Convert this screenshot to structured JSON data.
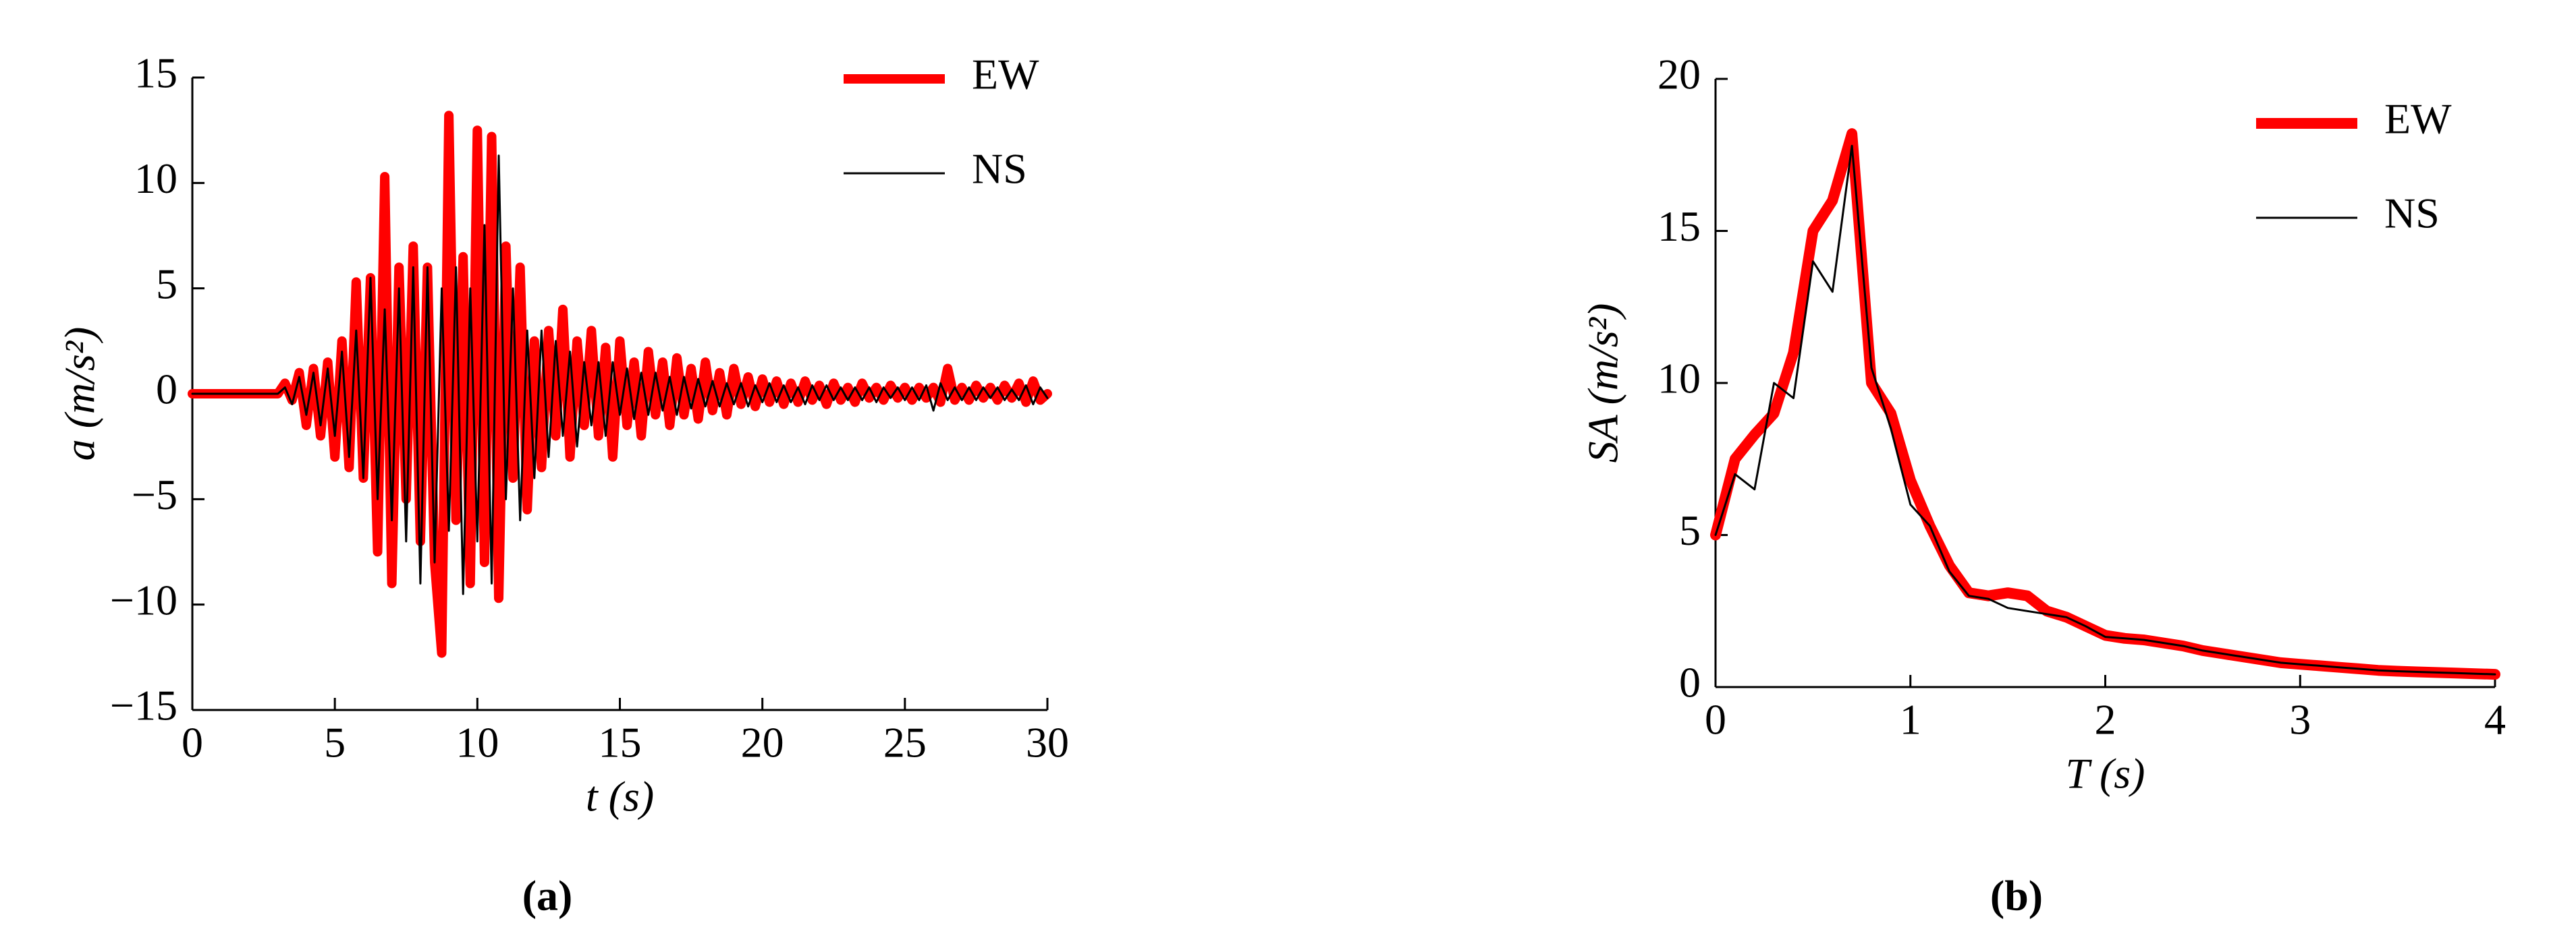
{
  "chart_data": [
    {
      "type": "line",
      "caption": "(a)",
      "xlabel": "t (s)",
      "ylabel": "a (m/s²)",
      "xlim": [
        0,
        30
      ],
      "xticks": [
        0,
        5,
        10,
        15,
        20,
        25,
        30
      ],
      "ylim": [
        -15,
        15
      ],
      "yticks": [
        {
          "value": -15,
          "label": "−15"
        },
        {
          "value": -10,
          "label": "−10"
        },
        {
          "value": -5,
          "label": "−5"
        },
        0,
        5,
        10,
        15
      ],
      "legend": "upper right",
      "x": [
        0,
        0.25,
        0.5,
        0.75,
        1,
        1.25,
        1.5,
        1.75,
        2,
        2.25,
        2.5,
        2.75,
        3,
        3.25,
        3.5,
        3.75,
        4,
        4.25,
        4.5,
        4.75,
        5,
        5.25,
        5.5,
        5.75,
        6,
        6.25,
        6.5,
        6.75,
        7,
        7.25,
        7.5,
        7.75,
        8,
        8.25,
        8.5,
        8.75,
        9,
        9.25,
        9.5,
        9.75,
        10,
        10.25,
        10.5,
        10.75,
        11,
        11.25,
        11.5,
        11.75,
        12,
        12.25,
        12.5,
        12.75,
        13,
        13.25,
        13.5,
        13.75,
        14,
        14.25,
        14.5,
        14.75,
        15,
        15.25,
        15.5,
        15.75,
        16,
        16.25,
        16.5,
        16.75,
        17,
        17.25,
        17.5,
        17.75,
        18,
        18.25,
        18.5,
        18.75,
        19,
        19.25,
        19.5,
        19.75,
        20,
        20.25,
        20.5,
        20.75,
        21,
        21.25,
        21.5,
        21.75,
        22,
        22.25,
        22.5,
        22.75,
        23,
        23.25,
        23.5,
        23.75,
        24,
        24.25,
        24.5,
        24.75,
        25,
        25.25,
        25.5,
        25.75,
        26,
        26.25,
        26.5,
        26.75,
        27,
        27.25,
        27.5,
        27.75,
        28,
        28.25,
        28.5,
        28.75,
        29,
        29.25,
        29.5,
        29.75,
        30
      ],
      "series": [
        {
          "name": "EW",
          "color": "#ff0000",
          "width": 14,
          "values": [
            0,
            0,
            0,
            0,
            0,
            0,
            0,
            0,
            0,
            0,
            0,
            0,
            0,
            0.5,
            -0.3,
            1.0,
            -1.5,
            1.2,
            -2,
            1.5,
            -3,
            2.5,
            -3.5,
            5.3,
            -4,
            5.5,
            -7.5,
            10.3,
            -9,
            6,
            -5,
            7,
            -7,
            6,
            -8,
            -12.3,
            13.2,
            -6,
            6.5,
            -9,
            12.5,
            -8,
            12.2,
            -9.7,
            7,
            -4,
            6,
            -5.5,
            2.5,
            -3.5,
            3,
            -2,
            4,
            -3,
            2.5,
            -1.5,
            3,
            -2,
            2.2,
            -3,
            2.5,
            -1.5,
            1.5,
            -2,
            2,
            -1,
            1.5,
            -1.5,
            1.7,
            -1,
            1.2,
            -1.2,
            1.5,
            -0.8,
            1,
            -1,
            1.2,
            -0.5,
            0.8,
            -0.6,
            0.7,
            -0.4,
            0.6,
            -0.5,
            0.5,
            -0.4,
            0.6,
            -0.3,
            0.4,
            -0.5,
            0.5,
            -0.3,
            0.3,
            -0.4,
            0.5,
            -0.2,
            0.3,
            -0.3,
            0.4,
            -0.2,
            0.3,
            -0.3,
            0.3,
            -0.2,
            0.3,
            -0.4,
            1.2,
            -0.3,
            0.3,
            -0.3,
            0.4,
            -0.2,
            0.3,
            -0.3,
            0.4,
            -0.2,
            0.5,
            -0.4,
            0.6,
            -0.3,
            0
          ]
        },
        {
          "name": "NS",
          "color": "#000000",
          "width": 3,
          "values": [
            0,
            0,
            0,
            0,
            0,
            0,
            0,
            0,
            0,
            0,
            0,
            0,
            0,
            0.3,
            -0.5,
            0.8,
            -1,
            1,
            -1.5,
            1.2,
            -2,
            2,
            -3,
            3,
            -4,
            5.5,
            -5,
            4,
            -6,
            5,
            -7,
            6,
            -9,
            6,
            -8,
            5,
            -6.5,
            6,
            -9.5,
            5,
            -7,
            8,
            -9,
            11.3,
            -5,
            5,
            -6,
            3,
            -4,
            3,
            -3,
            2.5,
            -2,
            2,
            -2.5,
            1.5,
            -1.5,
            1.5,
            -2,
            1.5,
            -1,
            1.2,
            -1.2,
            1,
            -1,
            1,
            -0.8,
            0.8,
            -1,
            0.8,
            -0.7,
            0.7,
            -0.6,
            0.6,
            -0.6,
            0.5,
            -0.5,
            0.5,
            -0.6,
            0.4,
            -0.4,
            0.5,
            -0.4,
            0.4,
            -0.4,
            0.3,
            -0.5,
            0.4,
            -0.3,
            0.4,
            -0.3,
            0.3,
            -0.3,
            0.3,
            -0.3,
            0.3,
            -0.4,
            0.3,
            -0.2,
            0.3,
            -0.3,
            0.3,
            -0.3,
            0.4,
            -0.8,
            0.5,
            -0.3,
            0.3,
            -0.3,
            0.3,
            -0.3,
            0.3,
            -0.2,
            0.3,
            -0.3,
            0.2,
            -0.3,
            0.4,
            -0.5,
            0.3,
            -0.2
          ]
        }
      ]
    },
    {
      "type": "line",
      "caption": "(b)",
      "xlabel": "T (s)",
      "ylabel": "SA (m/s²)",
      "xlim": [
        0,
        4
      ],
      "xticks": [
        0,
        1,
        2,
        3,
        4
      ],
      "ylim": [
        0,
        20
      ],
      "yticks": [
        0,
        5,
        10,
        15,
        20
      ],
      "legend": "upper right",
      "x": [
        0,
        0.1,
        0.2,
        0.3,
        0.4,
        0.5,
        0.6,
        0.7,
        0.8,
        0.9,
        1,
        1.1,
        1.2,
        1.3,
        1.4,
        1.5,
        1.6,
        1.7,
        1.8,
        1.9,
        2,
        2.1,
        2.2,
        2.3,
        2.4,
        2.5,
        2.6,
        2.7,
        2.8,
        2.9,
        3,
        3.1,
        3.2,
        3.3,
        3.4,
        3.5,
        3.6,
        3.7,
        3.8,
        3.9,
        4
      ],
      "series": [
        {
          "name": "EW",
          "color": "#ff0000",
          "width": 16,
          "values": [
            5,
            7.5,
            8.3,
            9,
            11,
            15,
            16,
            18.2,
            10,
            9,
            6.8,
            5.3,
            4,
            3.1,
            3,
            3.1,
            3,
            2.5,
            2.3,
            2,
            1.7,
            1.6,
            1.55,
            1.45,
            1.35,
            1.2,
            1.1,
            1,
            0.9,
            0.8,
            0.75,
            0.7,
            0.65,
            0.6,
            0.55,
            0.52,
            0.5,
            0.48,
            0.46,
            0.44,
            0.42
          ]
        },
        {
          "name": "NS",
          "color": "#000000",
          "width": 3,
          "values": [
            5,
            7,
            6.5,
            10,
            9.5,
            14,
            13,
            17.8,
            10.5,
            8.5,
            6,
            5.3,
            3.8,
            3,
            2.9,
            2.6,
            2.5,
            2.4,
            2.3,
            2,
            1.65,
            1.6,
            1.55,
            1.45,
            1.35,
            1.2,
            1.1,
            1,
            0.9,
            0.8,
            0.75,
            0.7,
            0.65,
            0.6,
            0.55,
            0.52,
            0.5,
            0.48,
            0.46,
            0.44,
            0.42
          ]
        }
      ]
    }
  ]
}
